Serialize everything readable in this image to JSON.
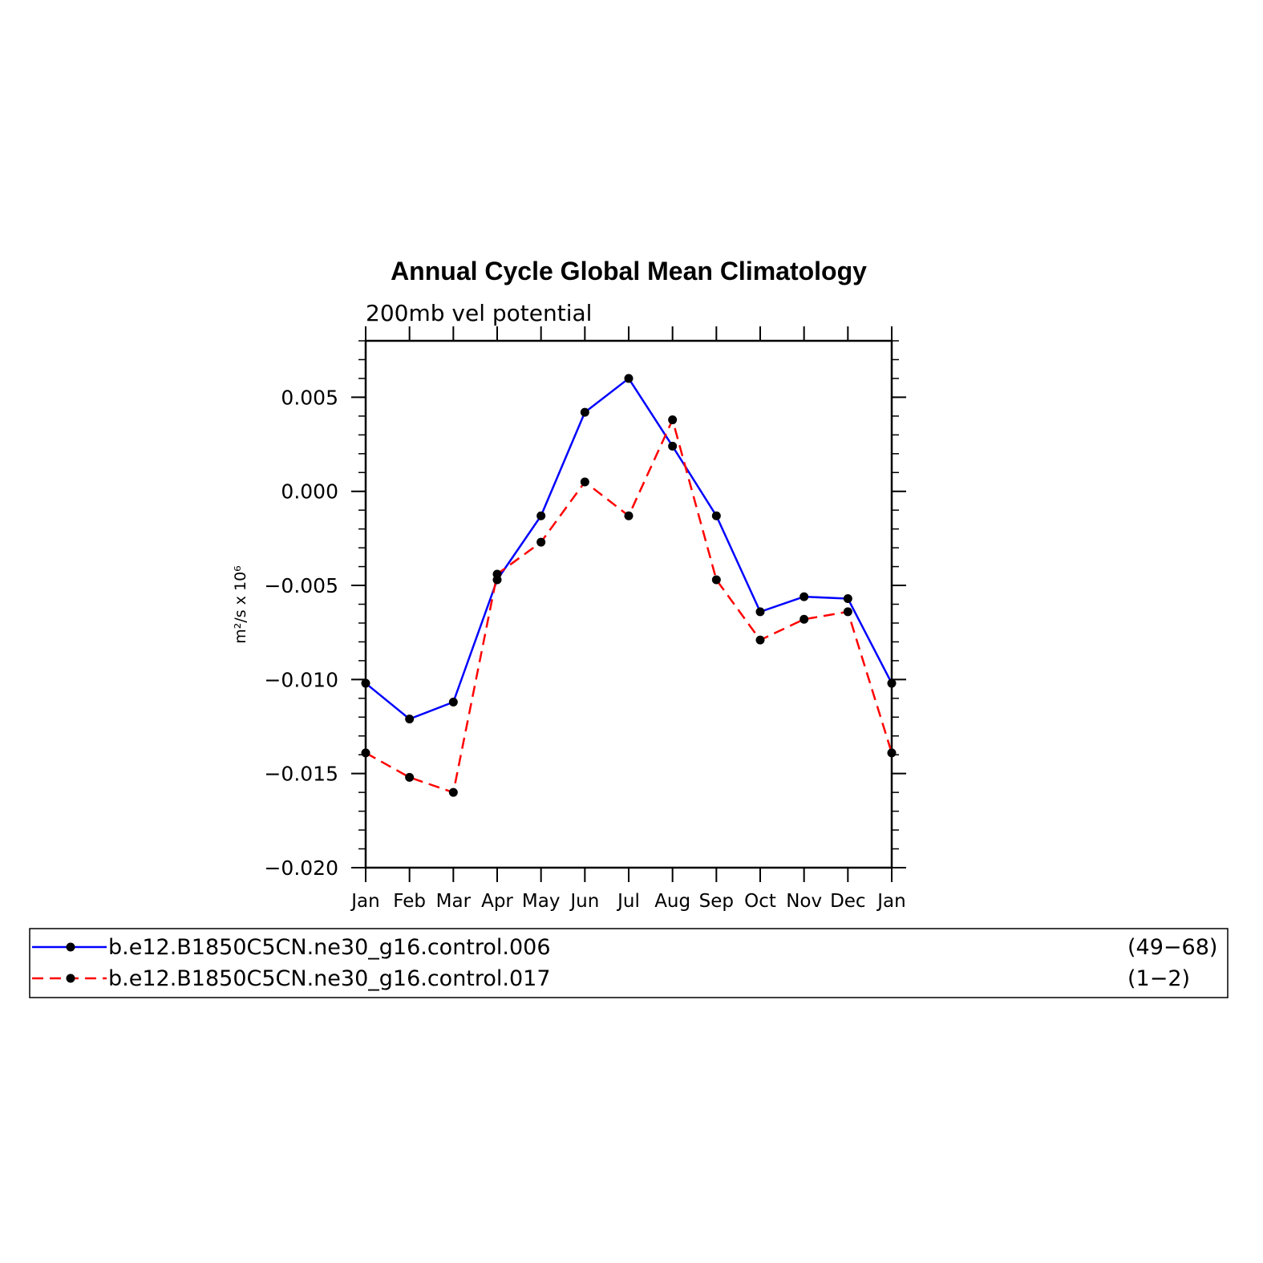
{
  "chart_data": {
    "type": "line",
    "title": "Annual Cycle Global Mean Climatology",
    "subtitle": "200mb vel potential",
    "ylabel": "m²/s x 10⁶",
    "xlabel": "",
    "categories": [
      "Jan",
      "Feb",
      "Mar",
      "Apr",
      "May",
      "Jun",
      "Jul",
      "Aug",
      "Sep",
      "Oct",
      "Nov",
      "Dec",
      "Jan"
    ],
    "ylim": [
      -0.02,
      0.008
    ],
    "yticks": [
      -0.02,
      -0.015,
      -0.01,
      -0.005,
      0.0,
      0.005
    ],
    "ytick_labels": [
      "−0.020",
      "−0.015",
      "−0.010",
      "−0.005",
      "0.000",
      "0.005"
    ],
    "series": [
      {
        "name": "b.e12.B1850C5CN.ne30_g16.control.006",
        "years": "(49−68)",
        "color": "#0000ff",
        "dash": "solid",
        "values": [
          -0.0102,
          -0.0121,
          -0.0112,
          -0.0047,
          -0.0013,
          0.0042,
          0.006,
          0.0024,
          -0.0013,
          -0.0064,
          -0.0056,
          -0.0057,
          -0.0102
        ]
      },
      {
        "name": "b.e12.B1850C5CN.ne30_g16.control.017",
        "years": "(1−2)",
        "color": "#ff0000",
        "dash": "dashed",
        "values": [
          -0.0139,
          -0.0152,
          -0.016,
          -0.0044,
          -0.0027,
          0.0005,
          -0.0013,
          0.0038,
          -0.0047,
          -0.0079,
          -0.0068,
          -0.0064,
          -0.0139
        ]
      }
    ],
    "marker_color": "#000000",
    "grid": false,
    "legend_position": "bottom"
  }
}
